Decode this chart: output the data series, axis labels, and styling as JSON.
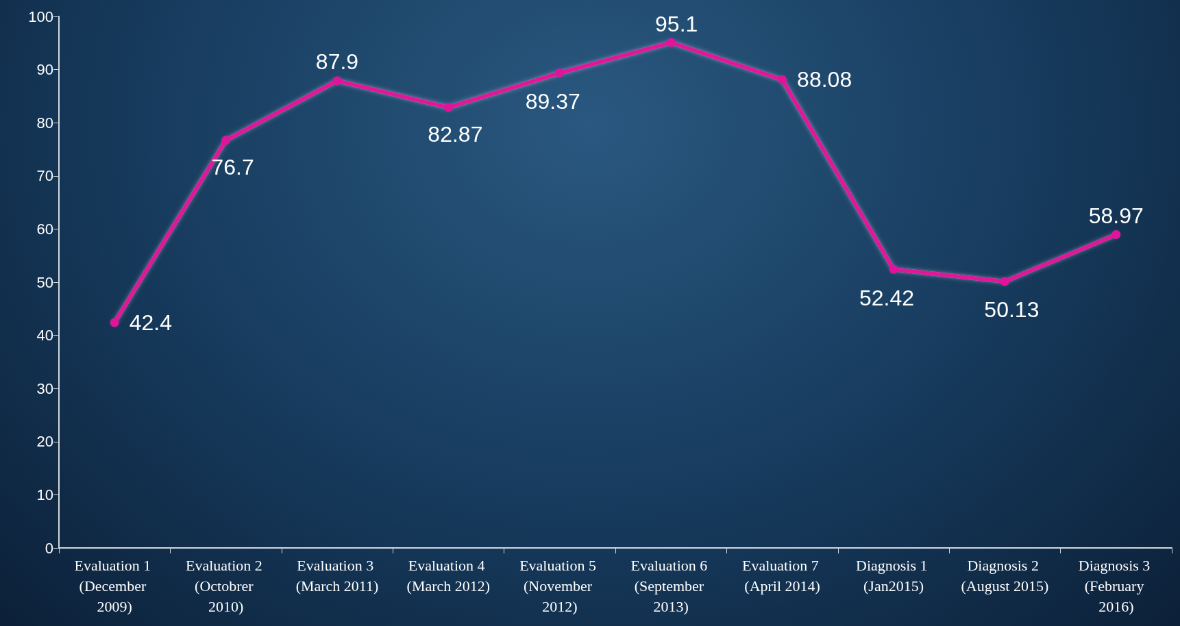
{
  "chart_data": {
    "type": "line",
    "categories": [
      "Evaluation 1 (December 2009)",
      "Evaluation 2 (Octobrer 2010)",
      "Evaluation 3 (March 2011)",
      "Evaluation 4 (March 2012)",
      "Evaluation 5 (November 2012)",
      "Evaluation 6 (September 2013)",
      "Evaluation 7 (April 2014)",
      "Diagnosis 1 (Jan2015)",
      "Diagnosis 2 (August 2015)",
      "Diagnosis 3 (February 2016)"
    ],
    "series": [
      {
        "color": "#e0139b",
        "values": [
          42.4,
          76.7,
          87.9,
          82.87,
          89.37,
          95.1,
          88.08,
          52.42,
          50.13,
          58.97
        ]
      }
    ],
    "ylim": [
      0,
      100
    ],
    "yticks": [
      0,
      10,
      20,
      30,
      40,
      50,
      60,
      70,
      80,
      90,
      100
    ],
    "data_labels": true,
    "marker": "circle",
    "line_style": "solid",
    "grid": false
  }
}
